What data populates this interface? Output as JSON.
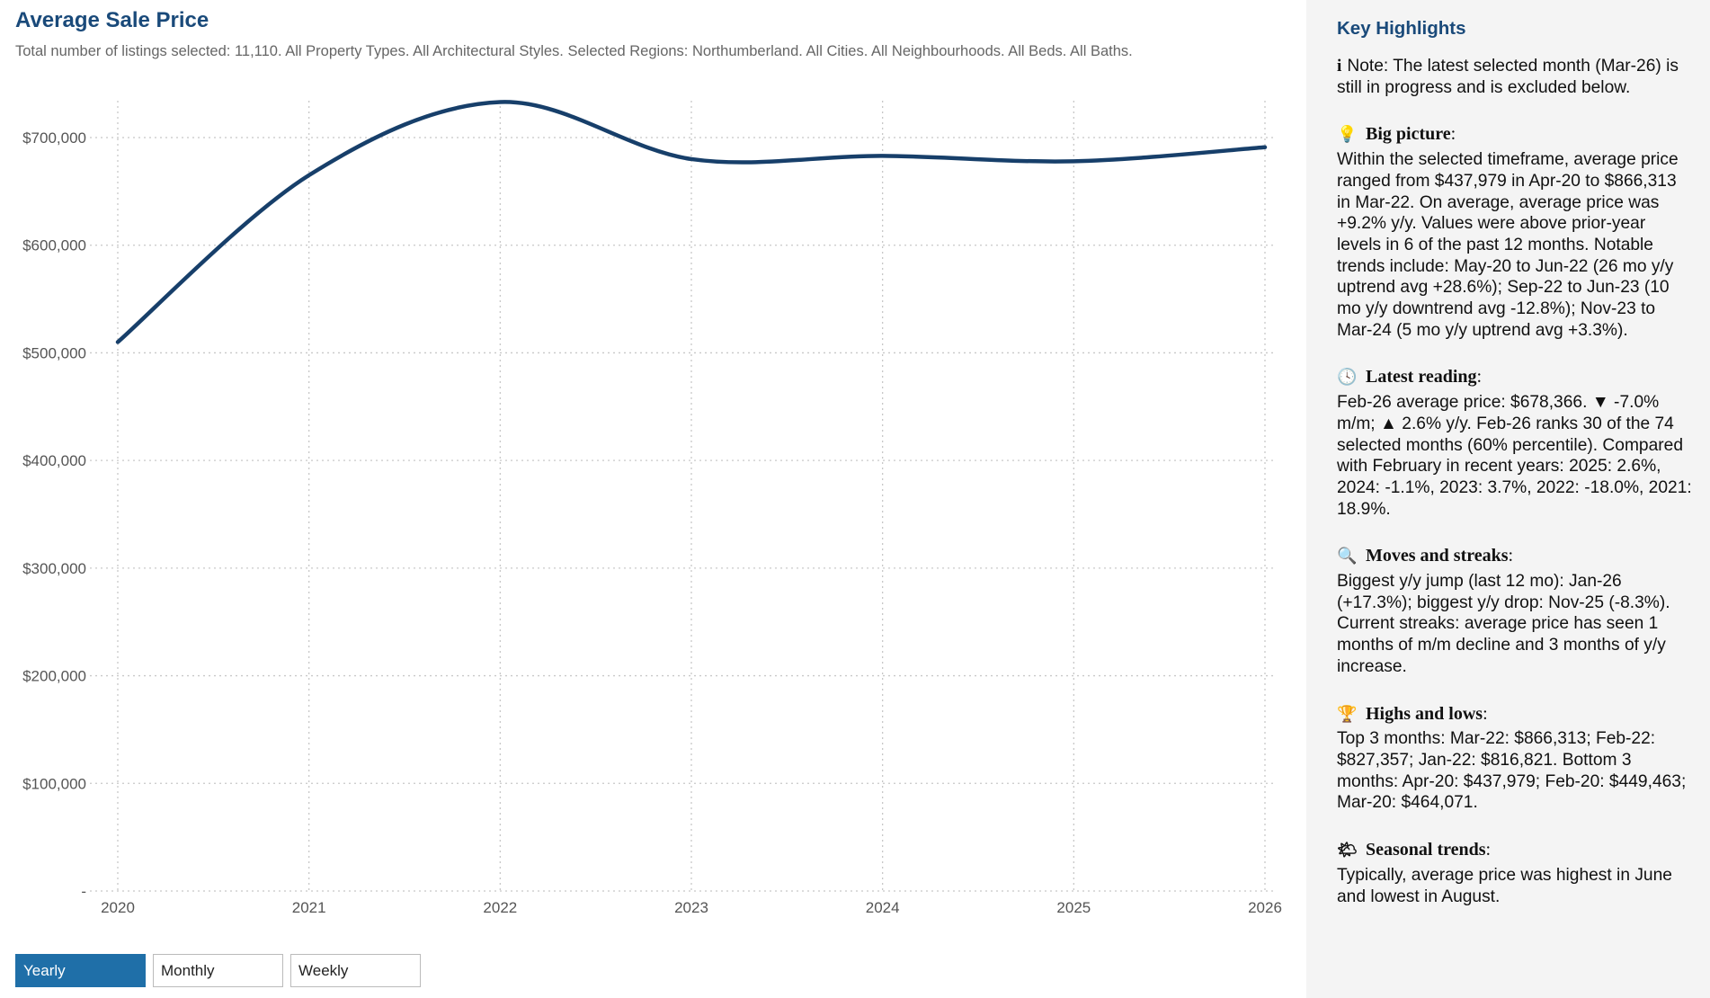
{
  "header": {
    "title": "Average Sale Price",
    "subtitle": "Total number of listings selected: 11,110. All Property Types. All Architectural Styles. Selected Regions: Northumberland. All Cities. All Neighbourhoods. All Beds. All Baths."
  },
  "chart_data": {
    "type": "line",
    "title": "Average Sale Price",
    "x": [
      2020,
      2021,
      2022,
      2023,
      2024,
      2025,
      2026
    ],
    "series": [
      {
        "name": "Average price",
        "values": [
          510000,
          665000,
          733000,
          680000,
          683000,
          678000,
          691000
        ],
        "color": "#173f6a"
      }
    ],
    "xlabel": "",
    "ylabel": "",
    "ylim": [
      0,
      700000
    ],
    "y_ticks": [
      "-",
      "$100,000",
      "$200,000",
      "$300,000",
      "$400,000",
      "$500,000",
      "$600,000",
      "$700,000"
    ],
    "x_ticks": [
      "2020",
      "2021",
      "2022",
      "2023",
      "2024",
      "2025",
      "2026"
    ],
    "grid": true
  },
  "controls": {
    "yearly": "Yearly",
    "monthly": "Monthly",
    "weekly": "Weekly",
    "active": "Yearly"
  },
  "panel": {
    "title": "Key Highlights",
    "note": {
      "icon": "info-icon",
      "text": "Note: The latest selected month (Mar-26) is still in progress and is excluded below."
    },
    "sections": [
      {
        "icon": "lightbulb-icon",
        "glyph": "💡",
        "heading": "Big picture",
        "text": "Within the selected timeframe, average price ranged from $437,979 in Apr-20 to $866,313 in Mar-22. On average, average price was +9.2% y/y. Values were above prior-year levels in 6 of the past 12 months. Notable trends include: May-20 to Jun-22 (26 mo y/y uptrend avg +28.6%); Sep-22 to Jun-23 (10 mo y/y downtrend avg -12.8%); Nov-23 to Mar-24 (5 mo y/y uptrend avg +3.3%)."
      },
      {
        "icon": "clock-icon",
        "glyph": "🕓",
        "heading": "Latest reading",
        "text": "Feb-26 average price: $678,366. ▼ -7.0% m/m; ▲ 2.6% y/y. Feb-26 ranks 30 of the 74 selected months (60% percentile). Compared with February in recent years: 2025: 2.6%, 2024: -1.1%, 2023: 3.7%, 2022: -18.0%, 2021: 18.9%."
      },
      {
        "icon": "magnifier-icon",
        "glyph": "🔍",
        "heading": "Moves and streaks",
        "text": "Biggest y/y jump (last 12 mo): Jan-26 (+17.3%); biggest y/y drop: Nov-25 (-8.3%). Current streaks: average price has seen 1 months of m/m decline and 3 months of y/y increase."
      },
      {
        "icon": "trophy-icon",
        "glyph": "🏆",
        "heading": "Highs and lows",
        "text": "Top 3 months: Mar-22: $866,313; Feb-22: $827,357; Jan-22: $816,821. Bottom 3 months: Apr-20: $437,979; Feb-20: $449,463; Mar-20: $464,071."
      },
      {
        "icon": "sun-cloud-icon",
        "glyph": "🌤",
        "heading": "Seasonal trends",
        "text": "Typically, average price was highest in June and lowest in August."
      }
    ]
  }
}
